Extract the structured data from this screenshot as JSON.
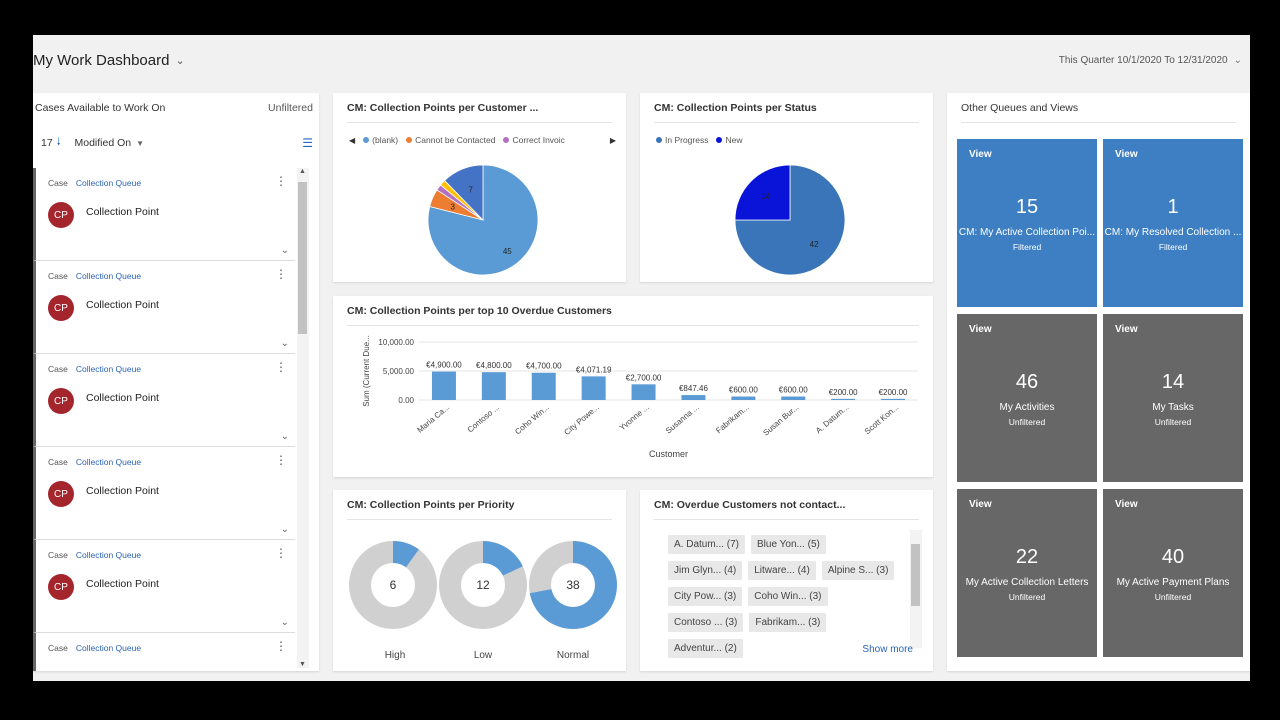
{
  "header": {
    "title": "My Work Dashboard",
    "period": "This Quarter 10/1/2020 To 12/31/2020"
  },
  "list": {
    "title": "Cases Available to Work On",
    "filter": "Unfiltered",
    "count": "17",
    "sort_label": "Modified On",
    "items": [
      {
        "type": "Case",
        "queue": "Collection Queue",
        "initials": "CP",
        "name": "Collection Point"
      },
      {
        "type": "Case",
        "queue": "Collection Queue",
        "initials": "CP",
        "name": "Collection Point"
      },
      {
        "type": "Case",
        "queue": "Collection Queue",
        "initials": "CP",
        "name": "Collection Point"
      },
      {
        "type": "Case",
        "queue": "Collection Queue",
        "initials": "CP",
        "name": "Collection Point"
      },
      {
        "type": "Case",
        "queue": "Collection Queue",
        "initials": "CP",
        "name": "Collection Point"
      },
      {
        "type": "Case",
        "queue": "Collection Queue",
        "initials": "",
        "name": ""
      }
    ]
  },
  "charts": {
    "per_customer": {
      "title": "CM: Collection Points per Customer ...",
      "legend": [
        "(blank)",
        "Cannot be Contacted",
        "Correct Invoic"
      ]
    },
    "per_status": {
      "title": "CM: Collection Points per Status",
      "legend": [
        "In Progress",
        "New"
      ]
    },
    "overdue": {
      "title": "CM: Collection Points per top 10 Overdue Customers"
    },
    "priority": {
      "title": "CM: Collection Points per Priority"
    },
    "not_contacted": {
      "title": "CM: Overdue Customers not contact...",
      "tags": [
        "A. Datum... (7)",
        "Blue Yon... (5)",
        "Jim Glyn... (4)",
        "Litware... (4)",
        "Alpine S... (3)",
        "City Pow... (3)",
        "Coho Win... (3)",
        "Contoso ... (3)",
        "Fabrikam... (3)",
        "Adventur... (2)"
      ],
      "show_more": "Show more"
    }
  },
  "chart_data": [
    {
      "type": "pie",
      "title": "CM: Collection Points per Customer ...",
      "labels": [
        "(blank)",
        "Cannot be Contacted",
        "Correct Invoic",
        "",
        ""
      ],
      "values": [
        45,
        3,
        1,
        1,
        7
      ],
      "colors": [
        "#5b9bd5",
        "#ed7d31",
        "#b46fc0",
        "#ffc000",
        "#4472c4"
      ]
    },
    {
      "type": "pie",
      "title": "CM: Collection Points per Status",
      "labels": [
        "In Progress",
        "New"
      ],
      "values": [
        42,
        14
      ],
      "colors": [
        "#3a75ba",
        "#0a14d8"
      ]
    },
    {
      "type": "bar",
      "title": "CM: Collection Points per top 10 Overdue Customers",
      "xlabel": "Customer",
      "ylabel": "Sum (Current Due...",
      "categories": [
        "Maria Ca...",
        "Contoso ...",
        "Coho Win...",
        "City Powe...",
        "Yvonne ...",
        "Susanna ...",
        "Fabrikam...",
        "Susan Bur...",
        "A. Datum...",
        "Scott Kon..."
      ],
      "values": [
        4900,
        4800,
        4700,
        4071.19,
        2700,
        847.46,
        600,
        600,
        200,
        200
      ],
      "value_labels": [
        "€4,900.00",
        "€4,800.00",
        "€4,700.00",
        "€4,071.19",
        "€2,700.00",
        "€847.46",
        "€600.00",
        "€600.00",
        "€200.00",
        "€200.00"
      ],
      "yticks": [
        "10,000.00",
        "5,000.00",
        "0.00"
      ],
      "ylim": [
        0,
        10000
      ],
      "color": "#5b9bd5"
    },
    {
      "type": "donut",
      "title": "CM: Collection Points per Priority",
      "series": [
        {
          "name": "High",
          "total": 6,
          "fraction": 0.1
        },
        {
          "name": "Low",
          "total": 12,
          "fraction": 0.18
        },
        {
          "name": "Normal",
          "total": 38,
          "fraction": 0.72
        }
      ],
      "colors": [
        "#5b9bd5",
        "#d0d0d0"
      ]
    }
  ],
  "queues": {
    "title": "Other Queues and Views",
    "tiles": [
      {
        "view": "View",
        "count": "15",
        "label": "CM: My Active Collection Poi...",
        "filter": "Filtered",
        "color": "#3d7fc2"
      },
      {
        "view": "View",
        "count": "1",
        "label": "CM: My Resolved Collection ...",
        "filter": "Filtered",
        "color": "#3d7fc2"
      },
      {
        "view": "View",
        "count": "46",
        "label": "My Activities",
        "filter": "Unfiltered",
        "color": "#676767"
      },
      {
        "view": "View",
        "count": "14",
        "label": "My Tasks",
        "filter": "Unfiltered",
        "color": "#676767"
      },
      {
        "view": "View",
        "count": "22",
        "label": "My Active Collection Letters",
        "filter": "Unfiltered",
        "color": "#676767"
      },
      {
        "view": "View",
        "count": "40",
        "label": "My Active Payment Plans",
        "filter": "Unfiltered",
        "color": "#676767"
      }
    ]
  }
}
